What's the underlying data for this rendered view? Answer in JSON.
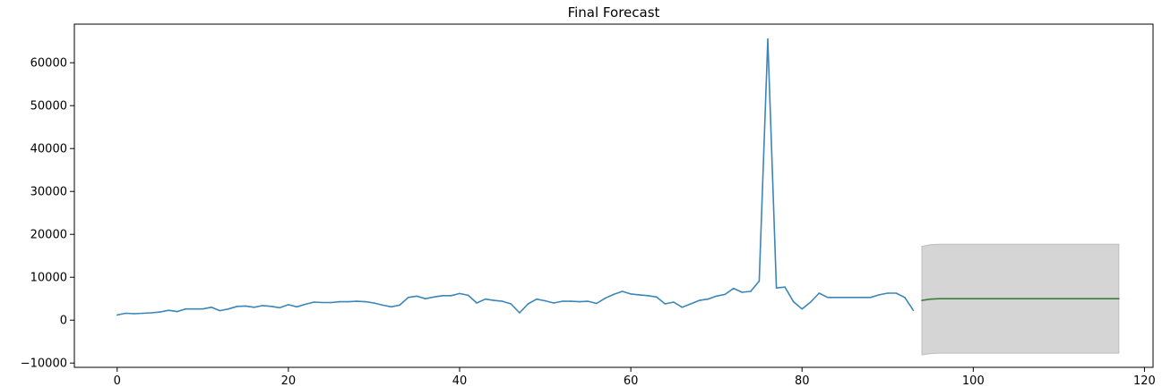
{
  "chart_data": {
    "type": "line",
    "title": "Final Forecast",
    "xlabel": "",
    "ylabel": "",
    "xlim": [
      -5,
      121
    ],
    "ylim": [
      -11000,
      69000
    ],
    "x_ticks": [
      0,
      20,
      40,
      60,
      80,
      100,
      120
    ],
    "y_ticks": [
      -10000,
      0,
      10000,
      20000,
      30000,
      40000,
      50000,
      60000
    ],
    "grid": false,
    "legend": "none",
    "colors": {
      "history": "#3b86b8",
      "forecast": "#3a7d3a",
      "band_fill": "#d5d5d5",
      "band_edge": "#bdbdbd"
    },
    "series": [
      {
        "role": "history",
        "x": [
          0,
          1,
          2,
          3,
          4,
          5,
          6,
          7,
          8,
          9,
          10,
          11,
          12,
          13,
          14,
          15,
          16,
          17,
          18,
          19,
          20,
          21,
          22,
          23,
          24,
          25,
          26,
          27,
          28,
          29,
          30,
          31,
          32,
          33,
          34,
          35,
          36,
          37,
          38,
          39,
          40,
          41,
          42,
          43,
          44,
          45,
          46,
          47,
          48,
          49,
          50,
          51,
          52,
          53,
          54,
          55,
          56,
          57,
          58,
          59,
          60,
          61,
          62,
          63,
          64,
          65,
          66,
          67,
          68,
          69,
          70,
          71,
          72,
          73,
          74,
          75,
          76,
          77,
          78,
          79,
          80,
          81,
          82,
          83,
          84,
          85,
          86,
          87,
          88,
          89,
          90,
          91,
          92,
          93
        ],
        "values": [
          1200,
          1600,
          1500,
          1600,
          1700,
          1900,
          2300,
          2000,
          2600,
          2600,
          2600,
          3000,
          2200,
          2600,
          3200,
          3300,
          3000,
          3400,
          3200,
          2900,
          3600,
          3100,
          3700,
          4200,
          4100,
          4100,
          4300,
          4300,
          4400,
          4300,
          4000,
          3500,
          3100,
          3500,
          5300,
          5600,
          5000,
          5400,
          5700,
          5700,
          6200,
          5800,
          4000,
          4900,
          4600,
          4400,
          3800,
          1700,
          3800,
          4900,
          4500,
          4000,
          4400,
          4400,
          4300,
          4400,
          3900,
          5100,
          6000,
          6700,
          6100,
          5900,
          5700,
          5400,
          3800,
          4200,
          3000,
          3800,
          4600,
          4900,
          5600,
          6000,
          7400,
          6500,
          6700,
          9100,
          65500,
          7500,
          7700,
          4300,
          2600,
          4200,
          6300,
          5300,
          5300,
          5300,
          5300,
          5300,
          5300,
          5900,
          6300,
          6300,
          5300,
          2300
        ]
      },
      {
        "role": "forecast",
        "x": [
          94,
          95,
          96,
          97,
          98,
          100,
          105,
          110,
          115,
          117
        ],
        "values": [
          4600,
          4900,
          5000,
          5000,
          5000,
          5000,
          5000,
          5000,
          5000,
          5000
        ]
      }
    ],
    "band": {
      "x": [
        94,
        95,
        96,
        117
      ],
      "upper": [
        17200,
        17600,
        17700,
        17700
      ],
      "lower": [
        -8100,
        -7800,
        -7700,
        -7700
      ]
    }
  }
}
